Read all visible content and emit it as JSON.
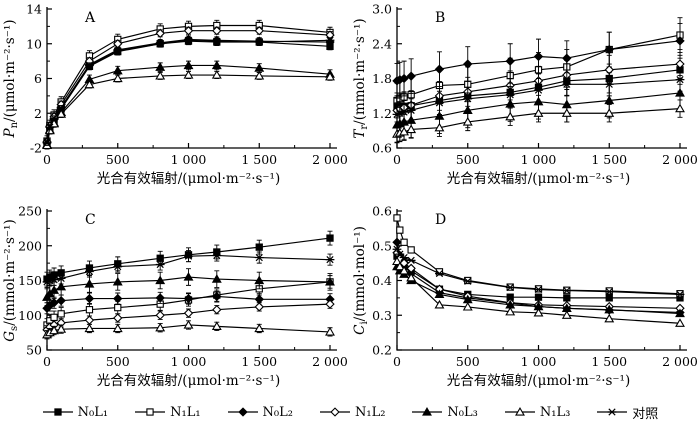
{
  "figure": {
    "background": "#ffffff",
    "line_color": "#000000"
  },
  "legend": {
    "position": "bottom",
    "items": [
      {
        "marker": "square-filled",
        "label": "N₀L₁"
      },
      {
        "marker": "square-open",
        "label": "N₁L₁"
      },
      {
        "marker": "diamond-filled",
        "label": "N₀L₂"
      },
      {
        "marker": "diamond-open",
        "label": "N₁L₂"
      },
      {
        "marker": "triangle-filled",
        "label": "N₀L₃"
      },
      {
        "marker": "triangle-open",
        "label": "N₁L₃"
      },
      {
        "marker": "star",
        "label": "对照"
      }
    ]
  },
  "chart_data": [
    {
      "id": "A",
      "type": "line",
      "panel_label": "A",
      "ylabel": {
        "symbol": "P",
        "sub": "n",
        "unit": "/(μmol·m⁻²·s⁻¹)"
      },
      "xlabel": "光合有效辐射/(μmol·m⁻²·s⁻¹)",
      "ylim": [
        -2,
        14
      ],
      "yticks": [
        -2,
        2,
        6,
        10,
        14
      ],
      "ytick_labels": [
        "-2",
        "2",
        "6",
        "10",
        "14"
      ],
      "yminor": [
        0,
        4,
        8,
        12
      ],
      "xlim": [
        0,
        2000
      ],
      "xticks": [
        0,
        500,
        1000,
        1500,
        2000
      ],
      "xtick_labels": [
        "0",
        "500",
        "1 000",
        "1 500",
        "2 000"
      ],
      "xminor": [
        250,
        750,
        1250,
        1750
      ],
      "x": [
        0,
        20,
        50,
        100,
        300,
        500,
        800,
        1000,
        1200,
        1500,
        2000
      ],
      "series": [
        {
          "name": "N₀L₁",
          "marker": "square-filled",
          "err": 0.4,
          "values": [
            -1.5,
            0.3,
            1.2,
            2.5,
            7.4,
            9.1,
            10.0,
            10.3,
            10.2,
            10.2,
            9.7
          ]
        },
        {
          "name": "N₁L₁",
          "marker": "square-open",
          "err": 0.6,
          "values": [
            -1.2,
            0.6,
            1.8,
            3.3,
            8.6,
            10.5,
            11.7,
            12.0,
            12.1,
            12.1,
            11.3
          ]
        },
        {
          "name": "N₀L₂",
          "marker": "diamond-filled",
          "err": 0.4,
          "values": [
            -1.4,
            0.4,
            1.3,
            2.7,
            7.6,
            9.3,
            10.1,
            10.5,
            10.4,
            10.3,
            10.2
          ]
        },
        {
          "name": "N₁L₂",
          "marker": "diamond-open",
          "err": 0.4,
          "values": [
            -1.3,
            0.5,
            1.6,
            3.0,
            8.0,
            10.0,
            11.2,
            11.5,
            11.5,
            11.5,
            11.0
          ]
        },
        {
          "name": "N₀L₃",
          "marker": "triangle-filled",
          "err": 0.5,
          "values": [
            -1.6,
            0.1,
            0.9,
            2.1,
            5.9,
            6.9,
            7.3,
            7.5,
            7.5,
            7.2,
            6.5
          ]
        },
        {
          "name": "N₁L₃",
          "marker": "triangle-open",
          "err": 0.4,
          "values": [
            -1.7,
            0.0,
            0.8,
            1.9,
            5.3,
            6.0,
            6.3,
            6.4,
            6.4,
            6.3,
            6.2
          ]
        },
        {
          "name": "对照",
          "marker": "star",
          "err": 0.3,
          "values": [
            -1.4,
            0.4,
            1.4,
            2.6,
            7.5,
            9.2,
            10.0,
            10.4,
            10.3,
            10.2,
            10.4
          ]
        }
      ]
    },
    {
      "id": "B",
      "type": "line",
      "panel_label": "B",
      "ylabel": {
        "symbol": "T",
        "sub": "r",
        "unit": "/(mmol·m⁻²·s⁻¹)"
      },
      "xlabel": "光合有效辐射/(μmol·m⁻²·s⁻¹)",
      "ylim": [
        0.6,
        3.0
      ],
      "yticks": [
        0.6,
        1.2,
        1.8,
        2.4,
        3.0
      ],
      "ytick_labels": [
        "0.6",
        "1.2",
        "1.8",
        "2.4",
        "3.0"
      ],
      "yminor": [
        0.9,
        1.5,
        2.1,
        2.7
      ],
      "xlim": [
        0,
        2000
      ],
      "xticks": [
        0,
        500,
        1000,
        1500,
        2000
      ],
      "xtick_labels": [
        "0",
        "500",
        "1 000",
        "1 500",
        "2 000"
      ],
      "xminor": [
        250,
        750,
        1250,
        1750
      ],
      "x": [
        0,
        20,
        50,
        100,
        300,
        500,
        800,
        1000,
        1200,
        1500,
        2000
      ],
      "series": [
        {
          "name": "N₀L₁",
          "marker": "square-filled",
          "err": 0.25,
          "values": [
            1.3,
            1.3,
            1.32,
            1.33,
            1.42,
            1.5,
            1.56,
            1.65,
            1.76,
            1.8,
            1.95
          ]
        },
        {
          "name": "N₁L₁",
          "marker": "square-open",
          "err": 0.3,
          "values": [
            1.42,
            1.45,
            1.48,
            1.52,
            1.68,
            1.7,
            1.85,
            1.95,
            2.0,
            2.3,
            2.55
          ]
        },
        {
          "name": "N₀L₂",
          "marker": "diamond-filled",
          "err": 0.3,
          "values": [
            1.76,
            1.78,
            1.8,
            1.84,
            1.96,
            2.05,
            2.1,
            2.18,
            2.15,
            2.3,
            2.45
          ]
        },
        {
          "name": "N₁L₂",
          "marker": "diamond-open",
          "err": 0.25,
          "values": [
            1.25,
            1.28,
            1.3,
            1.34,
            1.5,
            1.57,
            1.68,
            1.76,
            1.86,
            1.95,
            2.05
          ]
        },
        {
          "name": "N₀L₃",
          "marker": "triangle-filled",
          "err": 0.3,
          "values": [
            1.0,
            1.02,
            1.05,
            1.08,
            1.15,
            1.25,
            1.36,
            1.4,
            1.35,
            1.42,
            1.55
          ]
        },
        {
          "name": "N₁L₃",
          "marker": "triangle-open",
          "err": 0.15,
          "values": [
            0.84,
            0.86,
            0.88,
            0.92,
            0.95,
            1.05,
            1.14,
            1.2,
            1.2,
            1.2,
            1.28
          ]
        },
        {
          "name": "对照",
          "marker": "star",
          "err": 0.2,
          "values": [
            1.18,
            1.2,
            1.22,
            1.25,
            1.38,
            1.45,
            1.52,
            1.6,
            1.7,
            1.7,
            1.78
          ]
        }
      ]
    },
    {
      "id": "C",
      "type": "line",
      "panel_label": "C",
      "ylabel": {
        "symbol": "G",
        "sub": "s",
        "unit": "/(mmol·m⁻²·s⁻¹)"
      },
      "xlabel": "光合有效辐射/(μmol·m⁻²·s⁻¹)",
      "ylim": [
        50,
        250
      ],
      "yticks": [
        50,
        100,
        150,
        200,
        250
      ],
      "ytick_labels": [
        "50",
        "100",
        "150",
        "200",
        "250"
      ],
      "yminor": [
        75,
        125,
        175,
        225
      ],
      "xlim": [
        0,
        2000
      ],
      "xticks": [
        0,
        500,
        1000,
        1500,
        2000
      ],
      "xtick_labels": [
        "0",
        "500",
        "1 000",
        "1 500",
        "2 000"
      ],
      "xminor": [
        250,
        750,
        1250,
        1750
      ],
      "x": [
        0,
        20,
        50,
        100,
        300,
        500,
        800,
        1000,
        1200,
        1500,
        2000
      ],
      "series": [
        {
          "name": "N₀L₁",
          "marker": "square-filled",
          "err": 10,
          "values": [
            152,
            155,
            158,
            161,
            168,
            174,
            182,
            187,
            191,
            198,
            211
          ]
        },
        {
          "name": "N₁L₁",
          "marker": "square-open",
          "err": 9,
          "values": [
            86,
            92,
            97,
            102,
            108,
            111,
            116,
            122,
            129,
            138,
            148
          ]
        },
        {
          "name": "N₀L₂",
          "marker": "diamond-filled",
          "err": 8,
          "values": [
            110,
            114,
            118,
            121,
            124,
            124,
            125,
            124,
            127,
            123,
            123
          ]
        },
        {
          "name": "N₁L₂",
          "marker": "diamond-open",
          "err": 6,
          "values": [
            79,
            83,
            86,
            89,
            93,
            96,
            100,
            103,
            108,
            112,
            116
          ]
        },
        {
          "name": "N₀L₃",
          "marker": "triangle-filled",
          "err": 12,
          "values": [
            126,
            131,
            136,
            141,
            145,
            148,
            150,
            155,
            152,
            150,
            148
          ]
        },
        {
          "name": "N₁L₃",
          "marker": "triangle-open",
          "err": 6,
          "values": [
            72,
            75,
            78,
            80,
            81,
            81,
            82,
            86,
            84,
            81,
            76
          ]
        },
        {
          "name": "对照",
          "marker": "star",
          "err": 8,
          "values": [
            148,
            150,
            151,
            153,
            163,
            170,
            173,
            185,
            186,
            183,
            180
          ]
        }
      ]
    },
    {
      "id": "D",
      "type": "line",
      "panel_label": "D",
      "ylabel": {
        "symbol": "C",
        "sub": "i",
        "unit": "/(mmol·mol⁻¹)"
      },
      "xlabel": "光合有效辐射/(μmol·m⁻²·s⁻¹)",
      "ylim": [
        0.2,
        0.6
      ],
      "yticks": [
        0.2,
        0.3,
        0.4,
        0.5,
        0.6
      ],
      "ytick_labels": [
        "0.2",
        "0.3",
        "0.4",
        "0.5",
        "0.6"
      ],
      "yminor": [
        0.25,
        0.35,
        0.45,
        0.55
      ],
      "xlim": [
        0,
        2000
      ],
      "xticks": [
        0,
        500,
        1000,
        1500,
        2000
      ],
      "xtick_labels": [
        "0",
        "500",
        "1 000",
        "1 500",
        "2 000"
      ],
      "xminor": [
        250,
        750,
        1250,
        1750
      ],
      "x": [
        0,
        20,
        50,
        100,
        300,
        500,
        800,
        1000,
        1200,
        1500,
        2000
      ],
      "series": [
        {
          "name": "N₀L₁",
          "marker": "square-filled",
          "err": 0,
          "values": [
            0.47,
            0.452,
            0.44,
            0.428,
            0.375,
            0.36,
            0.352,
            0.352,
            0.35,
            0.35,
            0.35
          ]
        },
        {
          "name": "N₁L₁",
          "marker": "square-open",
          "err": 0,
          "values": [
            0.58,
            0.545,
            0.51,
            0.488,
            0.425,
            0.4,
            0.381,
            0.376,
            0.372,
            0.37,
            0.362
          ]
        },
        {
          "name": "N₀L₂",
          "marker": "diamond-filled",
          "err": 0,
          "values": [
            0.51,
            0.472,
            0.452,
            0.42,
            0.365,
            0.35,
            0.335,
            0.325,
            0.32,
            0.315,
            0.308
          ]
        },
        {
          "name": "N₁L₂",
          "marker": "diamond-open",
          "err": 0,
          "values": [
            0.48,
            0.462,
            0.45,
            0.435,
            0.375,
            0.355,
            0.336,
            0.33,
            0.328,
            0.325,
            0.32
          ]
        },
        {
          "name": "N₀L₃",
          "marker": "triangle-filled",
          "err": 0,
          "values": [
            0.44,
            0.428,
            0.418,
            0.4,
            0.36,
            0.345,
            0.33,
            0.325,
            0.32,
            0.316,
            0.305
          ]
        },
        {
          "name": "N₁L₃",
          "marker": "triangle-open",
          "err": 0,
          "values": [
            0.455,
            0.44,
            0.428,
            0.408,
            0.33,
            0.324,
            0.31,
            0.307,
            0.3,
            0.29,
            0.277
          ]
        },
        {
          "name": "对照",
          "marker": "star",
          "err": 0,
          "values": [
            0.49,
            0.476,
            0.466,
            0.458,
            0.42,
            0.398,
            0.38,
            0.374,
            0.371,
            0.368,
            0.36
          ]
        }
      ]
    }
  ]
}
